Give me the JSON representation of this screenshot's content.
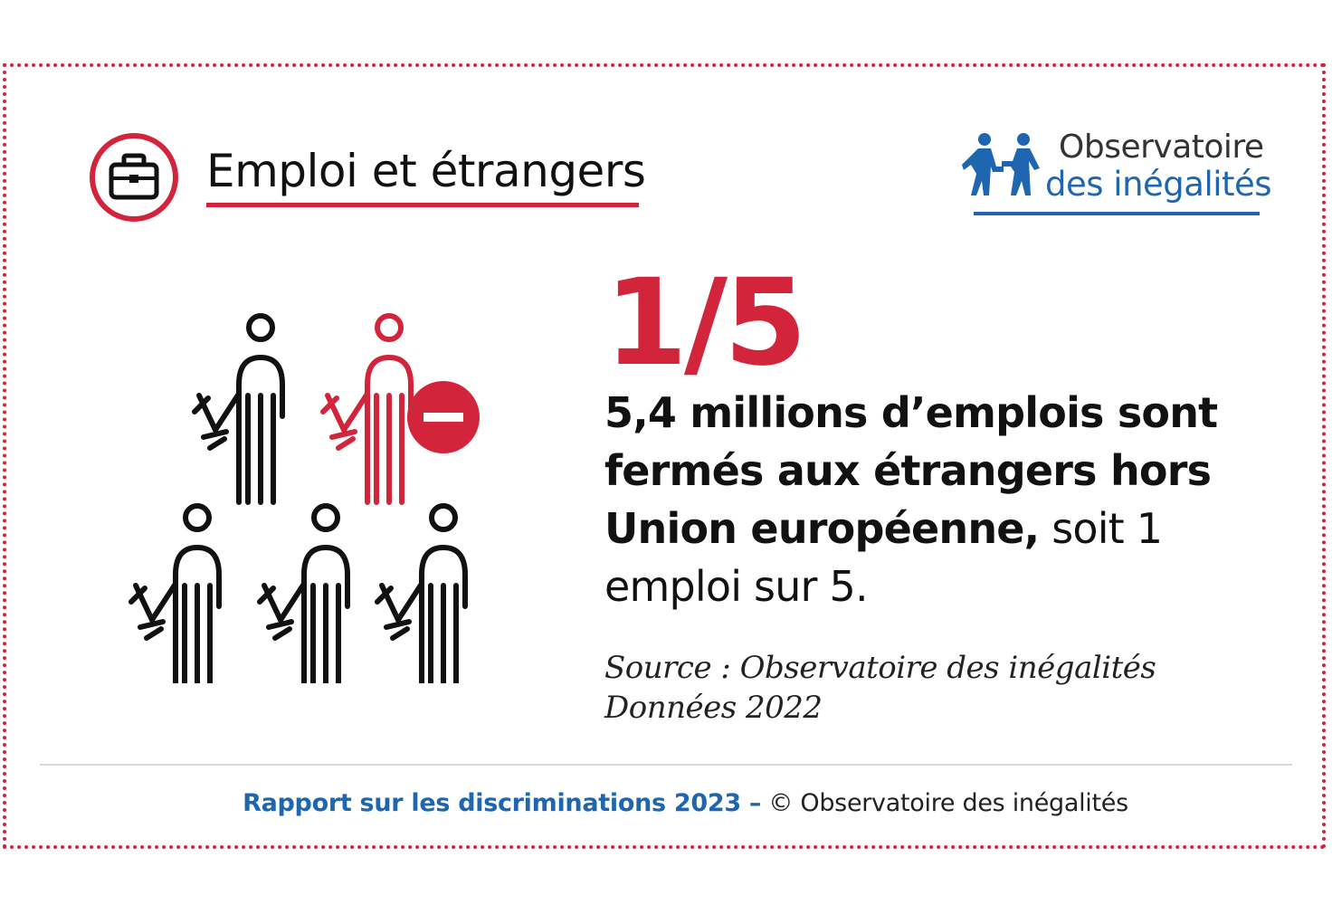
{
  "header": {
    "title": "Emploi et étrangers",
    "icon": "briefcase-icon",
    "accent_color": "#d2253c"
  },
  "logo": {
    "line1": "Observatoire",
    "line2": "des inégalités",
    "icon": "two-people-icon",
    "brand_color": "#1f66b1"
  },
  "illustration": {
    "icon": "worker-with-wrench-icon",
    "total_workers": 5,
    "excluded_workers": 1,
    "excluded_color": "#d2253c"
  },
  "stat": {
    "fraction": "1/5",
    "text_bold": "5,4 millions d’emplois sont fermés aux étrangers hors Union européenne,",
    "text_regular": " soit 1 emploi sur 5."
  },
  "source": {
    "line1": "Source : Observatoire des inégalités",
    "line2": "Données 2022"
  },
  "footer": {
    "report": "Rapport sur les discriminations 2023 –",
    "copyright": " © Observatoire des inégalités"
  }
}
